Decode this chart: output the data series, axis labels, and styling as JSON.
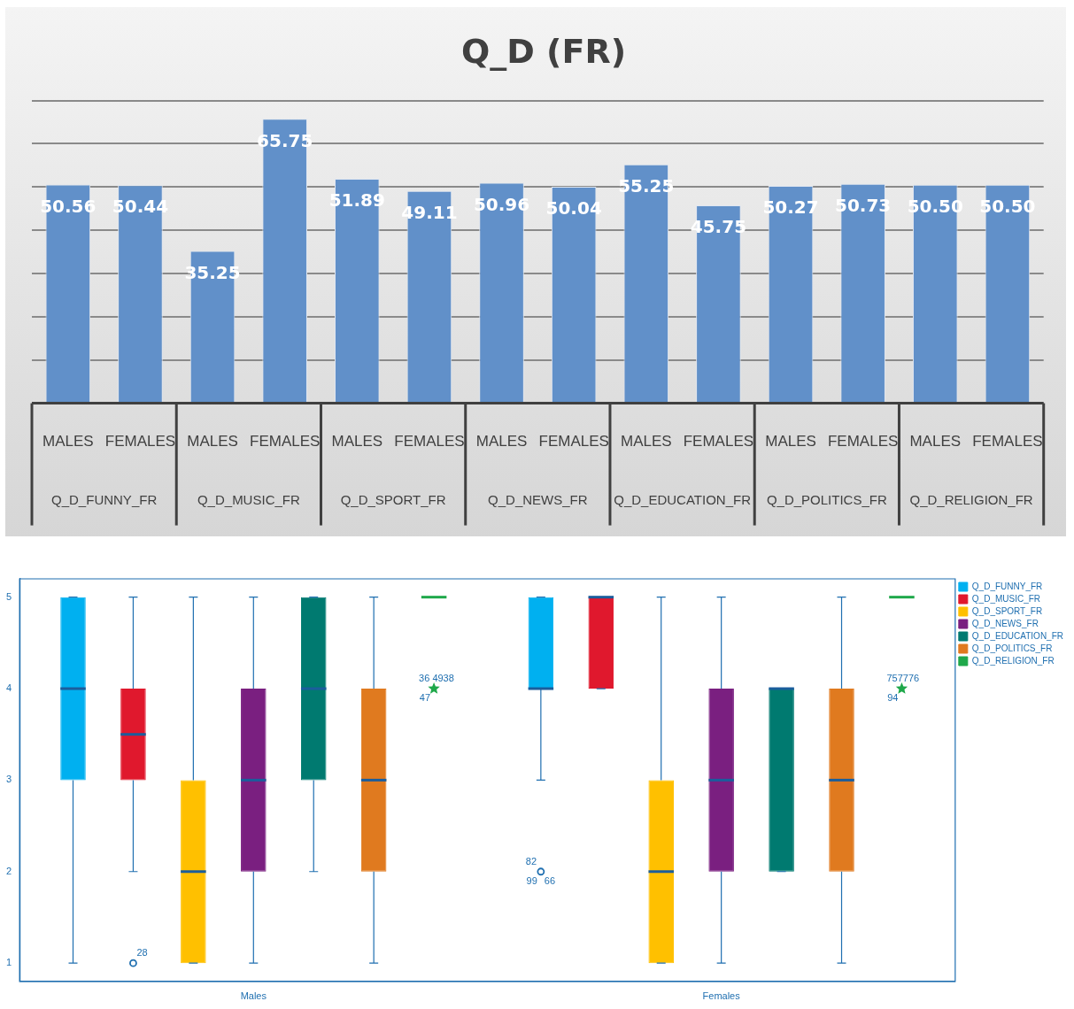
{
  "chart_data": [
    {
      "type": "bar",
      "title": "Q_D (FR)",
      "categories": [
        "MALES",
        "FEMALES",
        "MALES",
        "FEMALES",
        "MALES",
        "FEMALES",
        "MALES",
        "FEMALES",
        "MALES",
        "FEMALES",
        "MALES",
        "FEMALES",
        "MALES",
        "FEMALES"
      ],
      "values": [
        50.56,
        50.44,
        35.25,
        65.75,
        51.89,
        49.11,
        50.96,
        50.04,
        55.25,
        45.75,
        50.27,
        50.73,
        50.5,
        50.5
      ],
      "value_labels": [
        "50.56",
        "50.44",
        "35.25",
        "65.75",
        "51.89",
        "49.11",
        "50.96",
        "50.04",
        "55.25",
        "45.75",
        "50.27",
        "50.73",
        "50.50",
        "50.50"
      ],
      "color": "#6190c9",
      "grid": "y",
      "tick_labels": "x",
      "annotations": [
        "Q_D_FUNNY_FR",
        "Q_D_MUSIC_FR",
        "Q_D_SPORT_FR",
        "Q_D_NEWS_FR",
        "Q_D_EDUCATION_FR",
        "Q_D_POLITICS_FR",
        "Q_D_RELIGION_FR"
      ]
    },
    {
      "type": "box",
      "categories": [
        "Males",
        "Females"
      ],
      "ylim": [
        0.8,
        5.2
      ],
      "yticks": [
        1,
        2,
        3,
        4,
        5
      ],
      "legend": "top right",
      "marker": "circle",
      "series": [
        {
          "name": "Q_D_FUNNY_FR",
          "color": "#00b0f0",
          "boxes": [
            {
              "low": 1,
              "q1": 3,
              "median": 4,
              "q3": 5,
              "high": 5
            },
            {
              "low": 3,
              "q1": 4,
              "median": 4,
              "q3": 5,
              "high": 5,
              "outliers": [
                2
              ]
            }
          ]
        },
        {
          "name": "Q_D_MUSIC_FR",
          "color": "#e0182d",
          "boxes": [
            {
              "low": 2,
              "q1": 3,
              "median": 3.5,
              "q3": 4,
              "high": 5,
              "outliers": [
                1
              ]
            },
            {
              "low": 4,
              "q1": 4,
              "median": 5,
              "q3": 5,
              "high": 5
            }
          ]
        },
        {
          "name": "Q_D_SPORT_FR",
          "color": "#ffc000",
          "boxes": [
            {
              "low": 1,
              "q1": 1,
              "median": 2,
              "q3": 3,
              "high": 5
            },
            {
              "low": 1,
              "q1": 1,
              "median": 2,
              "q3": 3,
              "high": 5
            }
          ]
        },
        {
          "name": "Q_D_NEWS_FR",
          "color": "#7a1f80",
          "boxes": [
            {
              "low": 1,
              "q1": 2,
              "median": 3,
              "q3": 4,
              "high": 5
            },
            {
              "low": 1,
              "q1": 2,
              "median": 3,
              "q3": 4,
              "high": 5
            }
          ]
        },
        {
          "name": "Q_D_EDUCATION_FR",
          "color": "#007a70",
          "boxes": [
            {
              "low": 2,
              "q1": 3,
              "median": 4,
              "q3": 5,
              "high": 5
            },
            {
              "low": 2,
              "q1": 2,
              "median": 4,
              "q3": 4,
              "high": 4
            }
          ]
        },
        {
          "name": "Q_D_POLITICS_FR",
          "color": "#e07a1f",
          "boxes": [
            {
              "low": 1,
              "q1": 2,
              "median": 3,
              "q3": 4,
              "high": 5
            },
            {
              "low": 1,
              "q1": 2,
              "median": 3,
              "q3": 4,
              "high": 5
            }
          ]
        },
        {
          "name": "Q_D_RELIGION_FR",
          "color": "#1fa84a",
          "marker": "star",
          "boxes": [
            {
              "low": 5,
              "q1": 5,
              "median": 5,
              "q3": 5,
              "high": 5,
              "outliers": [
                4
              ]
            },
            {
              "low": 5,
              "q1": 5,
              "median": 5,
              "q3": 5,
              "high": 5,
              "outliers": [
                4
              ]
            }
          ]
        }
      ],
      "annotations": [
        "28",
        "36 4938",
        "47",
        "82",
        "99",
        "66",
        "757776",
        "94"
      ]
    }
  ]
}
